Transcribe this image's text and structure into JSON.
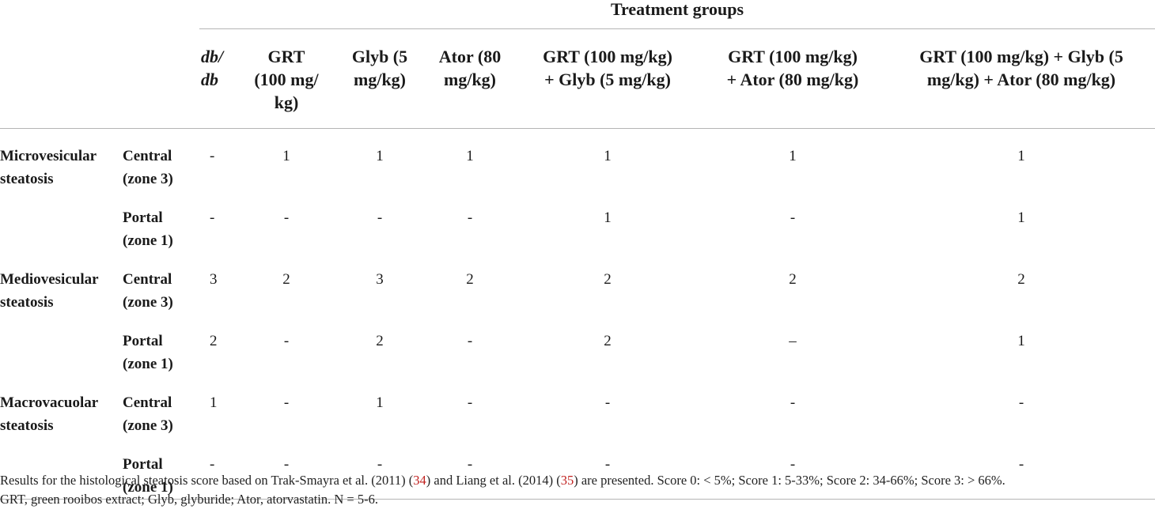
{
  "table": {
    "group_header": "Treatment groups",
    "columns": [
      "db/\ndb",
      "GRT\n(100 mg/\nkg)",
      "Glyb (5\nmg/kg)",
      "Ator (80\nmg/kg)",
      "GRT (100 mg/kg)\n+ Glyb (5 mg/kg)",
      "GRT (100 mg/kg)\n+ Ator (80 mg/kg)",
      "GRT (100 mg/kg) + Glyb (5\nmg/kg) + Ator (80 mg/kg)"
    ],
    "categories": [
      {
        "name": "Microvesicular\nsteatosis",
        "rows": [
          {
            "zone": "Central\n(zone 3)",
            "values": [
              "-",
              "1",
              "1",
              "1",
              "1",
              "1",
              "1"
            ]
          },
          {
            "zone": "Portal\n(zone 1)",
            "values": [
              "-",
              "-",
              "-",
              "-",
              "1",
              "-",
              "1"
            ]
          }
        ]
      },
      {
        "name": "Mediovesicular\nsteatosis",
        "rows": [
          {
            "zone": "Central\n(zone 3)",
            "values": [
              "3",
              "2",
              "3",
              "2",
              "2",
              "2",
              "2"
            ]
          },
          {
            "zone": "Portal\n(zone 1)",
            "values": [
              "2",
              "-",
              "2",
              "-",
              "2",
              "–",
              "1"
            ]
          }
        ]
      },
      {
        "name": "Macrovacuolar\nsteatosis",
        "rows": [
          {
            "zone": "Central\n(zone 3)",
            "values": [
              "1",
              "-",
              "1",
              "-",
              "-",
              "-",
              "-"
            ]
          },
          {
            "zone": "Portal\n(zone 1)",
            "values": [
              "-",
              "-",
              "-",
              "-",
              "-",
              "-",
              "-"
            ]
          }
        ]
      }
    ]
  },
  "footnote": {
    "part1": "Results for the histological steatosis score based on Trak-Smayra et al. (2011) (",
    "ref1": "34",
    "part2": ") and Liang et al. (2014) (",
    "ref2": "35",
    "part3": ") are presented. Score 0: < 5%; Score 1: 5-33%; Score 2: 34-66%; Score 3: > 66%.",
    "line2": "GRT, green rooibos extract; Glyb, glyburide; Ator, atorvastatin. N = 5-6."
  },
  "colors": {
    "text": "#1a1a1a",
    "rule": "#b5b5b5",
    "reference_link": "#c0201e"
  }
}
